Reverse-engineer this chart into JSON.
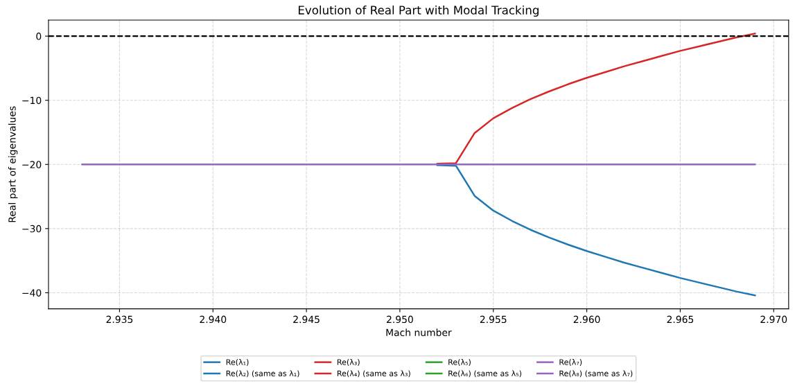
{
  "chart_data": {
    "type": "line",
    "title": "Evolution of Real Part with Modal Tracking",
    "xlabel": "Mach number",
    "ylabel": "Real part of eigenvalues",
    "x": [
      2.933,
      2.934,
      2.935,
      2.936,
      2.937,
      2.938,
      2.939,
      2.94,
      2.941,
      2.942,
      2.943,
      2.944,
      2.945,
      2.946,
      2.947,
      2.948,
      2.949,
      2.95,
      2.951,
      2.952,
      2.953,
      2.954,
      2.955,
      2.956,
      2.957,
      2.958,
      2.959,
      2.96,
      2.961,
      2.962,
      2.963,
      2.964,
      2.965,
      2.966,
      2.967,
      2.968,
      2.969
    ],
    "series": [
      {
        "name": "Re(λ₁)",
        "color": "#1f77b4",
        "values": [
          null,
          null,
          null,
          null,
          null,
          null,
          null,
          null,
          null,
          null,
          null,
          null,
          null,
          null,
          null,
          null,
          null,
          null,
          null,
          null,
          null,
          null,
          null,
          null,
          null,
          null,
          null,
          null,
          null,
          null,
          null,
          null,
          null,
          null,
          null,
          null,
          null
        ]
      },
      {
        "name": "Re(λ₂) (same as λ₁)",
        "color": "#1f77b4",
        "values": [
          null,
          null,
          null,
          null,
          null,
          null,
          null,
          null,
          null,
          null,
          null,
          null,
          null,
          null,
          null,
          null,
          null,
          null,
          null,
          -20.1,
          -20.2,
          -24.9,
          -27.2,
          -28.8,
          -30.2,
          -31.4,
          -32.5,
          -33.5,
          -34.4,
          -35.3,
          -36.1,
          -36.9,
          -37.7,
          -38.4,
          -39.1,
          -39.8,
          -40.4
        ]
      },
      {
        "name": "Re(λ₃)",
        "color": "#d62728",
        "values": [
          null,
          null,
          null,
          null,
          null,
          null,
          null,
          null,
          null,
          null,
          null,
          null,
          null,
          null,
          null,
          null,
          null,
          null,
          null,
          null,
          null,
          null,
          null,
          null,
          null,
          null,
          null,
          null,
          null,
          null,
          null,
          null,
          null,
          null,
          null,
          null,
          null
        ]
      },
      {
        "name": "Re(λ₄) (same as λ₃)",
        "color": "#d62728",
        "values": [
          null,
          null,
          null,
          null,
          null,
          null,
          null,
          null,
          null,
          null,
          null,
          null,
          null,
          null,
          null,
          null,
          null,
          null,
          null,
          -19.9,
          -19.8,
          -15.1,
          -12.8,
          -11.2,
          -9.8,
          -8.6,
          -7.5,
          -6.5,
          -5.6,
          -4.7,
          -3.9,
          -3.1,
          -2.3,
          -1.6,
          -0.9,
          -0.2,
          0.4
        ]
      },
      {
        "name": "Re(λ₅)",
        "color": "#2ca02c",
        "values": [
          null,
          null,
          null,
          null,
          null,
          null,
          null,
          null,
          null,
          null,
          null,
          null,
          null,
          null,
          null,
          null,
          null,
          null,
          null,
          null,
          null,
          null,
          null,
          null,
          null,
          null,
          null,
          null,
          null,
          null,
          null,
          null,
          null,
          null,
          null,
          null,
          null
        ]
      },
      {
        "name": "Re(λ₆) (same as λ₅)",
        "color": "#2ca02c",
        "values": [
          null,
          null,
          null,
          null,
          null,
          null,
          null,
          null,
          null,
          null,
          null,
          null,
          null,
          null,
          null,
          null,
          null,
          null,
          null,
          null,
          null,
          null,
          null,
          null,
          null,
          null,
          null,
          null,
          null,
          null,
          null,
          null,
          null,
          null,
          null,
          null,
          null
        ]
      },
      {
        "name": "Re(λ₇)",
        "color": "#9467bd",
        "values": [
          null,
          null,
          null,
          null,
          null,
          null,
          null,
          null,
          null,
          null,
          null,
          null,
          null,
          null,
          null,
          null,
          null,
          null,
          null,
          null,
          null,
          null,
          null,
          null,
          null,
          null,
          null,
          null,
          null,
          null,
          null,
          null,
          null,
          null,
          null,
          null,
          null
        ]
      },
      {
        "name": "Re(λ₈) (same as λ₇)",
        "color": "#9467bd",
        "values": [
          -20,
          -20,
          -20,
          -20,
          -20,
          -20,
          -20,
          -20,
          -20,
          -20,
          -20,
          -20,
          -20,
          -20,
          -20,
          -20,
          -20,
          -20,
          -20,
          -20,
          -20,
          -20,
          -20,
          -20,
          -20,
          -20,
          -20,
          -20,
          -20,
          -20,
          -20,
          -20,
          -20,
          -20,
          -20,
          -20,
          -20
        ]
      }
    ],
    "ref_lines": [
      {
        "axis": "y",
        "value": 0,
        "color": "#000000",
        "line_style": "dashed"
      }
    ],
    "xlim": [
      2.9312,
      2.9708
    ],
    "xticks": [
      {
        "value": 2.935,
        "label": "2.935"
      },
      {
        "value": 2.94,
        "label": "2.940"
      },
      {
        "value": 2.945,
        "label": "2.945"
      },
      {
        "value": 2.95,
        "label": "2.950"
      },
      {
        "value": 2.955,
        "label": "2.955"
      },
      {
        "value": 2.96,
        "label": "2.960"
      },
      {
        "value": 2.965,
        "label": "2.965"
      },
      {
        "value": 2.97,
        "label": "2.970"
      }
    ],
    "ylim": [
      -42.5,
      2.5
    ],
    "yticks": [
      {
        "value": -40,
        "label": "−40"
      },
      {
        "value": -30,
        "label": "−30"
      },
      {
        "value": -20,
        "label": "−20"
      },
      {
        "value": -10,
        "label": "−10"
      },
      0
    ],
    "grid": true,
    "legend": "bottom",
    "line_style": "solid",
    "marker": "none"
  }
}
